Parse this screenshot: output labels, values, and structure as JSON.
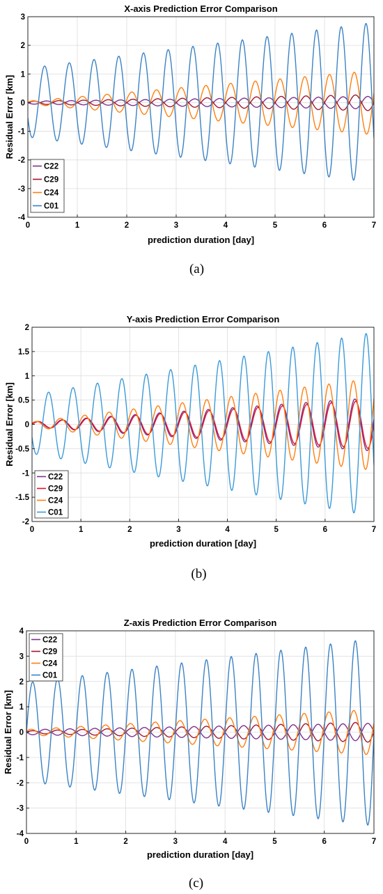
{
  "chart_data": [
    {
      "type": "line",
      "title": "X-axis Prediction Error Comparison",
      "xlabel": "prediction duration [day]",
      "ylabel": "Residual Error [km]",
      "xlim": [
        0,
        7
      ],
      "ylim": [
        -4,
        3
      ],
      "x_ticks": [
        "0",
        "1",
        "2",
        "3",
        "4",
        "5",
        "6",
        "7"
      ],
      "y_ticks": [
        "-4",
        "-3",
        "-2",
        "-1",
        "0",
        "1",
        "2",
        "3"
      ],
      "grid": true,
      "legend_position": "lower-left",
      "caption": "(a)",
      "series": [
        {
          "name": "C22",
          "color": "#7e2f8e",
          "amp_start": 0.05,
          "amp_end": 0.22,
          "period": 0.5,
          "phase": 3.14
        },
        {
          "name": "C29",
          "color": "#a2142f",
          "amp_start": 0.05,
          "amp_end": 0.28,
          "period": 0.5,
          "phase": 0.0
        },
        {
          "name": "C24",
          "color": "#ff7f0e",
          "amp_start": 0.05,
          "amp_end": 1.12,
          "period": 0.5,
          "phase": 0.3
        },
        {
          "name": "C01",
          "color": "#3b82c4",
          "amp_start": 1.2,
          "amp_end": 2.8,
          "period": 0.5,
          "phase": 3.6
        }
      ]
    },
    {
      "type": "line",
      "title": "Y-axis Prediction Error Comparison",
      "xlabel": "prediction duration [day]",
      "ylabel": "Residual Error [km]",
      "xlim": [
        0,
        7
      ],
      "ylim": [
        -2,
        2
      ],
      "x_ticks": [
        "0",
        "1",
        "2",
        "3",
        "4",
        "5",
        "6",
        "7"
      ],
      "y_ticks": [
        "-2",
        "-1.5",
        "-1",
        "-0.5",
        "0",
        "0.5",
        "1",
        "1.5",
        "2"
      ],
      "grid": true,
      "legend_position": "lower-left",
      "caption": "(b)",
      "series": [
        {
          "name": "C22",
          "color": "#7e2f8e",
          "amp_start": 0.05,
          "amp_end": 0.55,
          "period": 0.5,
          "phase": 0.2
        },
        {
          "name": "C29",
          "color": "#e0112d",
          "amp_start": 0.05,
          "amp_end": 0.5,
          "period": 0.5,
          "phase": 0.0
        },
        {
          "name": "C24",
          "color": "#ff7f0e",
          "amp_start": 0.05,
          "amp_end": 0.95,
          "period": 0.5,
          "phase": 0.6
        },
        {
          "name": "C01",
          "color": "#3b9ad9",
          "amp_start": 0.6,
          "amp_end": 1.9,
          "period": 0.5,
          "phase": 3.6
        }
      ]
    },
    {
      "type": "line",
      "title": "Z-axis Prediction Error Comparison",
      "xlabel": "prediction duration [day]",
      "ylabel": "Residual Error [km]",
      "xlim": [
        0,
        7
      ],
      "ylim": [
        -4,
        4
      ],
      "x_ticks": [
        "0",
        "1",
        "2",
        "3",
        "4",
        "5",
        "6",
        "7"
      ],
      "y_ticks": [
        "-4",
        "-3",
        "-2",
        "-1",
        "0",
        "1",
        "2",
        "3",
        "4"
      ],
      "grid": true,
      "legend_position": "top-left",
      "caption": "(c)",
      "series": [
        {
          "name": "C22",
          "color": "#7e2f8e",
          "amp_start": 0.1,
          "amp_end": 0.35,
          "period": 0.5,
          "phase": 3.14
        },
        {
          "name": "C29",
          "color": "#a2142f",
          "amp_start": 0.05,
          "amp_end": 0.4,
          "period": 0.5,
          "phase": 0.0
        },
        {
          "name": "C24",
          "color": "#ff7f0e",
          "amp_start": 0.1,
          "amp_end": 0.9,
          "period": 0.5,
          "phase": 0.4
        },
        {
          "name": "C01",
          "color": "#3b82c4",
          "amp_start": 1.95,
          "amp_end": 3.7,
          "period": 0.5,
          "phase": 0.0
        }
      ]
    }
  ]
}
